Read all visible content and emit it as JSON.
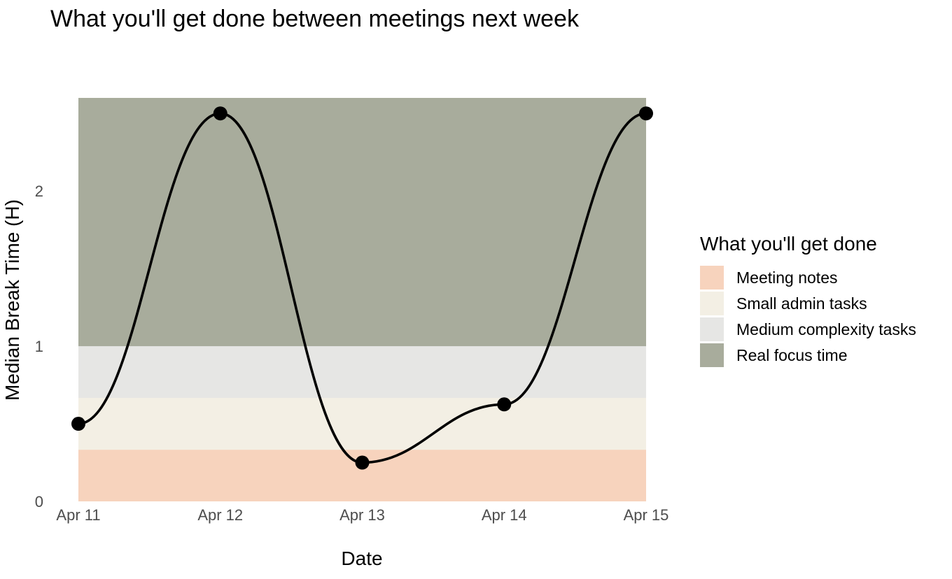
{
  "chart_data": {
    "type": "line",
    "title": "What you'll get done between meetings next week",
    "xlabel": "Date",
    "ylabel": "Median Break Time (H)",
    "x": [
      "Apr 11",
      "Apr 12",
      "Apr 13",
      "Apr 14",
      "Apr 15"
    ],
    "series": [
      {
        "values": [
          0.5,
          2.5,
          0.25,
          0.625,
          2.5
        ],
        "color": "#000000"
      }
    ],
    "yticks": [
      0,
      1,
      2
    ],
    "ylim": [
      0,
      2.6
    ],
    "grid": false,
    "smoothed": true,
    "bands": [
      {
        "label": "Meeting notes",
        "from": 0,
        "to": 0.333,
        "color": "#f7d3bd"
      },
      {
        "label": "Small admin tasks",
        "from": 0.333,
        "to": 0.667,
        "color": "#f3efe4"
      },
      {
        "label": "Medium complexity tasks",
        "from": 0.667,
        "to": 1,
        "color": "#e6e6e4"
      },
      {
        "label": "Real focus time",
        "from": 1,
        "to": 2.6,
        "color": "#a8ac9c"
      }
    ],
    "legend": {
      "title": "What you'll get done",
      "placement": "right"
    }
  }
}
